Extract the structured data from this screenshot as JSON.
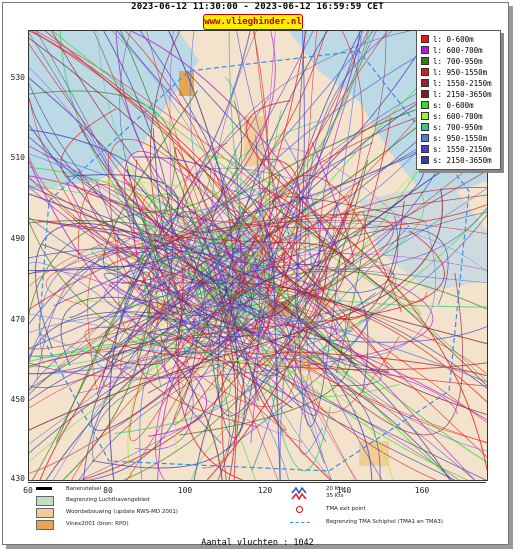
{
  "header": {
    "title": "2023-06-12 11:30:00 - 2023-06-12 16:59:59 CET",
    "brand": "www.vlieghinder.nl"
  },
  "axes": {
    "y_ticks": [
      "530",
      "510",
      "490",
      "470",
      "450",
      "430"
    ],
    "x_ticks": [
      "60",
      "80",
      "100",
      "120",
      "140",
      "160"
    ]
  },
  "colors": {
    "land": "#f3e2cc",
    "water": "#bcd9e6",
    "airport": "#c4dcc2",
    "residential": "#f2cd95",
    "vinex": "#e5a64d"
  },
  "legend": {
    "items": [
      {
        "label": "l:  0-600m",
        "color": "#e11a1a"
      },
      {
        "label": "l:  600-700m",
        "color": "#b01fd6"
      },
      {
        "label": "l:  700-950m",
        "color": "#3a7a1a"
      },
      {
        "label": "l:  950-1550m",
        "color": "#cc2222"
      },
      {
        "label": "l:  1550-2150m",
        "color": "#9a1f3d"
      },
      {
        "label": "l:  2150-3650m",
        "color": "#7a2020"
      },
      {
        "label": "s:  0-600m",
        "color": "#2ede2e"
      },
      {
        "label": "s:  600-700m",
        "color": "#a6f02a"
      },
      {
        "label": "s:  700-950m",
        "color": "#39c97a"
      },
      {
        "label": "s:  950-1550m",
        "color": "#5a7ad8"
      },
      {
        "label": "s:  1550-2150m",
        "color": "#4d3fc6"
      },
      {
        "label": "s:  2150-3650m",
        "color": "#3d3a99"
      }
    ]
  },
  "bottom_legend": {
    "runway": "Banenstelsel",
    "airport_boundary": "Begrenzing Luchthavengebied",
    "residential": "Woonbebouwing (update RWS-MD 2001)",
    "vinex": "Vinex2001 (bron: RPD)",
    "wind_20": "20 Kts",
    "wind_35": "35 Kts",
    "tma_exit": "TMA exit point",
    "tma_boundary": "Begrenzing TMA Schiphol  (TMA1 en TMA3)"
  },
  "footer": {
    "count": "Aantal vluchten : 1042"
  }
}
